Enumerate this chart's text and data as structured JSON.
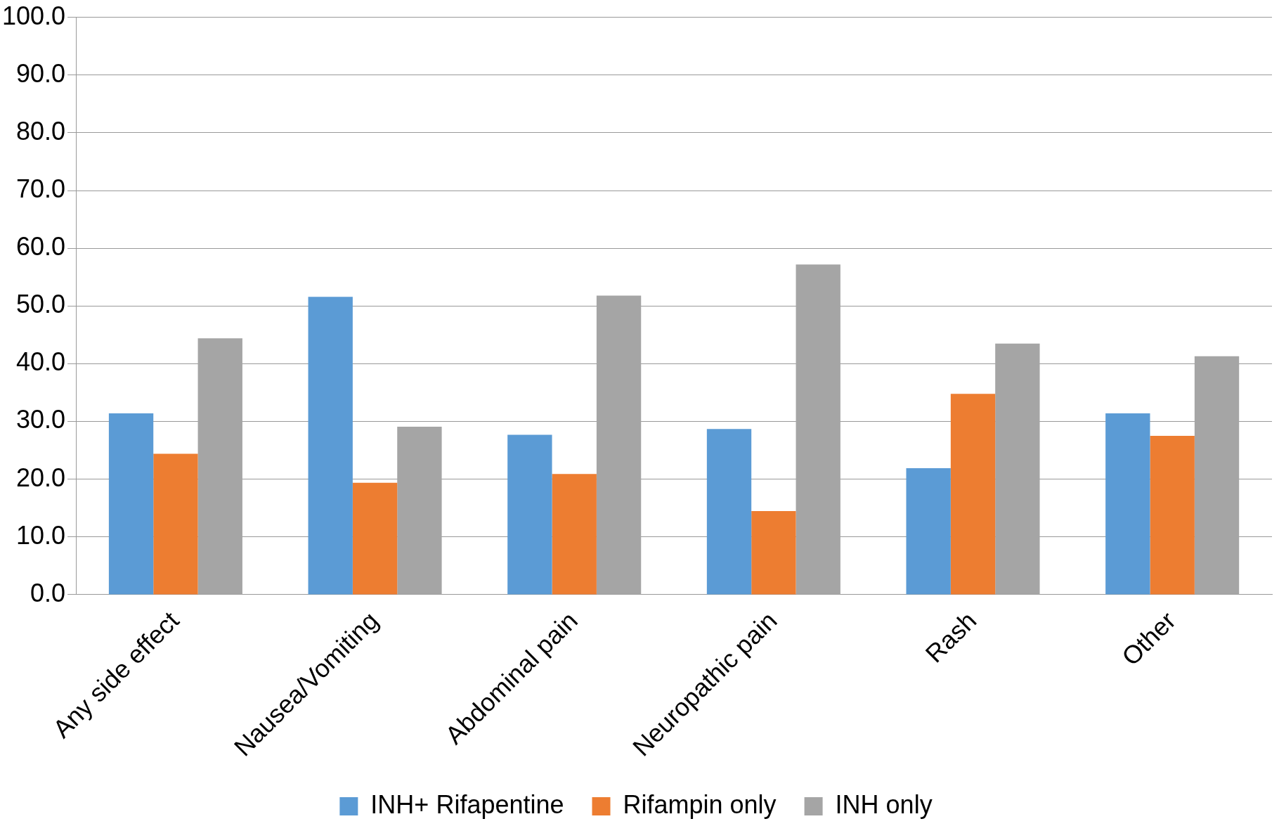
{
  "chart_data": {
    "type": "bar",
    "categories": [
      "Any side effect",
      "Nausea/Vomiting",
      "Abdominal pain",
      "Neuropathic pain",
      "Rash",
      "Other"
    ],
    "series": [
      {
        "name": "INH+ Rifapentine",
        "color": "#5b9bd5",
        "values": [
          31.4,
          51.6,
          27.7,
          28.7,
          21.9,
          31.4
        ]
      },
      {
        "name": "Rifampin only",
        "color": "#ed7d31",
        "values": [
          24.4,
          19.4,
          20.9,
          14.5,
          34.8,
          27.5
        ]
      },
      {
        "name": "INH only",
        "color": "#a5a5a5",
        "values": [
          44.4,
          29.1,
          51.8,
          57.2,
          43.5,
          41.3
        ]
      }
    ],
    "ylim": [
      0,
      100
    ],
    "yticks": [
      {
        "value": 0,
        "label": "0.0"
      },
      {
        "value": 10,
        "label": "10.0"
      },
      {
        "value": 20,
        "label": "20.0"
      },
      {
        "value": 30,
        "label": "30.0"
      },
      {
        "value": 40,
        "label": "40.0"
      },
      {
        "value": 50,
        "label": "50.0"
      },
      {
        "value": 60,
        "label": "60.0"
      },
      {
        "value": 70,
        "label": "70.0"
      },
      {
        "value": 80,
        "label": "80.0"
      },
      {
        "value": 90,
        "label": "90.0"
      },
      {
        "value": 100,
        "label": "100.0"
      }
    ],
    "grid": "y",
    "legend": "bottom"
  }
}
